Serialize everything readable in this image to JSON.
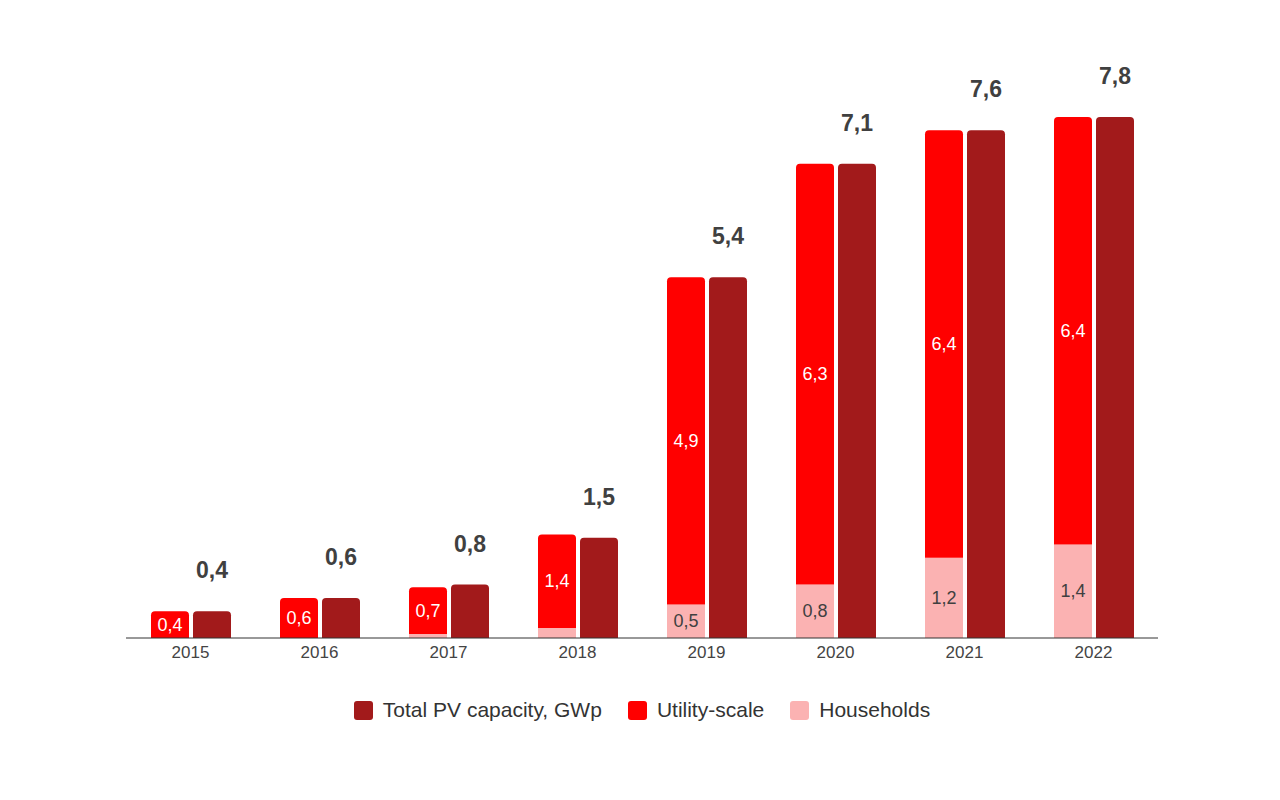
{
  "chart_data": {
    "type": "bar",
    "categories": [
      "2015",
      "2016",
      "2017",
      "2018",
      "2019",
      "2020",
      "2021",
      "2022"
    ],
    "series": [
      {
        "name": "Total PV capacity, GWp",
        "color": "#a21a1b",
        "values": [
          0.4,
          0.6,
          0.8,
          1.5,
          5.4,
          7.1,
          7.6,
          7.8
        ],
        "value_labels": [
          "0,4",
          "0,6",
          "0,8",
          "1,5",
          "5,4",
          "7,1",
          "7,6",
          "7,8"
        ],
        "stacked": false
      },
      {
        "name": "Utility-scale",
        "color": "#ff0000",
        "values": [
          0.4,
          0.6,
          0.7,
          1.4,
          4.9,
          6.3,
          6.4,
          6.4
        ],
        "value_labels": [
          "0,4",
          "0,6",
          "0,7",
          "1,4",
          "4,9",
          "6,3",
          "6,4",
          "6,4"
        ],
        "stacked": true
      },
      {
        "name": "Households",
        "color": "#fbb2b2",
        "values": [
          0,
          0,
          0.06,
          0.15,
          0.5,
          0.8,
          1.2,
          1.4
        ],
        "value_labels": [
          null,
          null,
          null,
          null,
          "0,5",
          "0,8",
          "1,2",
          "1,4"
        ],
        "stacked": true
      }
    ],
    "data_labels": true,
    "tick_labels": "x",
    "legend": "bottom",
    "grid": false
  }
}
